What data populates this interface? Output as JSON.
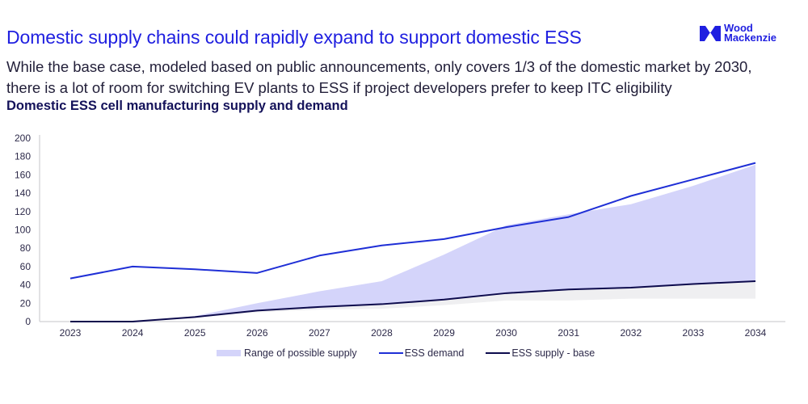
{
  "header": {
    "title": "Domestic supply chains could rapidly expand to support domestic ESS",
    "subtitle_line1": "While the base case, modeled based on public announcements, only covers 1/3 of the domestic market by 2030,",
    "subtitle_line2": "there is a lot of room for switching EV plants to ESS if project developers prefer to keep ITC eligibility",
    "logo": {
      "line1": "Wood",
      "line2": "Mackenzie",
      "icon": "wood-mackenzie-logo-icon"
    }
  },
  "colors": {
    "brand": "#1f1fe0",
    "demand": "#1f2fd6",
    "supply_base": "#0d0b4d",
    "range": "#d4d4fa",
    "range_floor": "#efeff1",
    "axis": "#d8d8dc"
  },
  "chart_data": {
    "type": "line",
    "title": "Domestic ESS cell manufacturing supply and demand",
    "xlabel": "",
    "ylabel": "",
    "x": [
      "2023",
      "2024",
      "2025",
      "2026",
      "2027",
      "2028",
      "2029",
      "2030",
      "2031",
      "2032",
      "2033",
      "2034"
    ],
    "ylim": [
      0,
      200
    ],
    "yticks": [
      0,
      20,
      40,
      60,
      80,
      100,
      120,
      140,
      160,
      180,
      200
    ],
    "grid": false,
    "legend_position": "bottom",
    "series": [
      {
        "name": "Range of possible supply",
        "kind": "range",
        "upper": [
          0,
          0,
          6,
          20,
          33,
          44,
          73,
          105,
          117,
          128,
          148,
          171
        ],
        "lower": [
          0,
          0,
          4,
          10,
          13,
          14,
          18,
          23,
          23,
          25,
          25,
          25
        ]
      },
      {
        "name": "ESS demand",
        "kind": "line",
        "values": [
          47,
          60,
          57,
          53,
          72,
          83,
          90,
          103,
          114,
          137,
          155,
          173
        ]
      },
      {
        "name": "ESS supply - base",
        "kind": "line",
        "values": [
          0,
          0,
          5,
          12,
          16,
          19,
          24,
          31,
          35,
          37,
          41,
          44
        ]
      }
    ]
  }
}
